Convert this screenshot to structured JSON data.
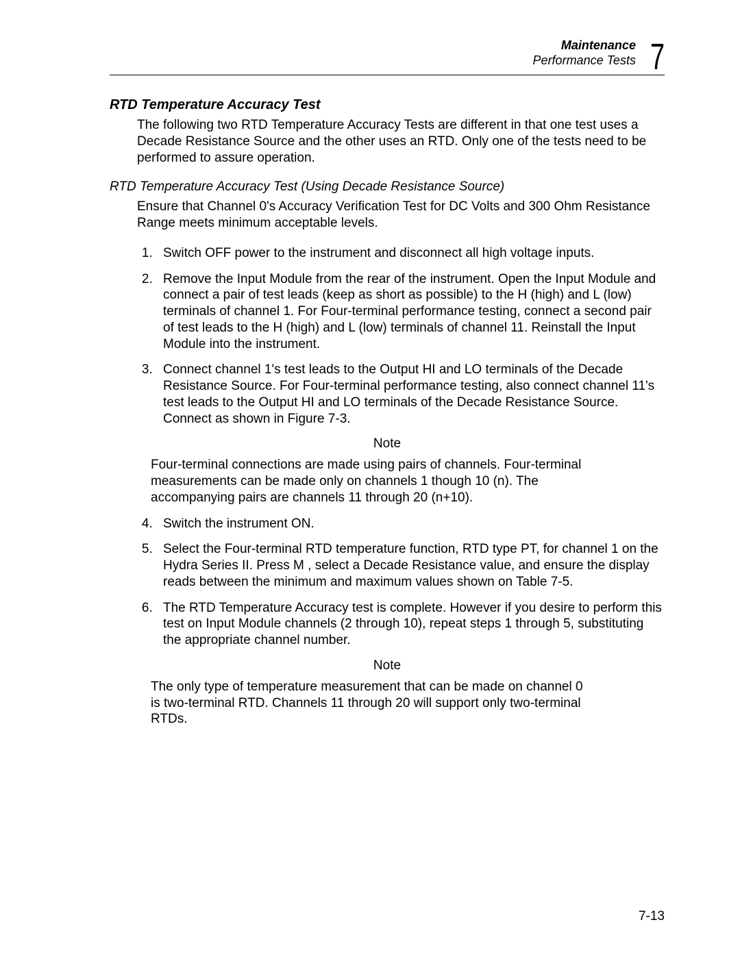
{
  "header": {
    "bold_line": "Maintenance",
    "italic_line": "Performance Tests",
    "chapter_number": "7"
  },
  "section": {
    "heading": "RTD Temperature Accuracy Test",
    "intro": "The following two RTD Temperature Accuracy Tests are different in that one test uses a Decade Resistance Source and the other uses an RTD. Only one of the tests need to be performed to assure operation."
  },
  "subsection": {
    "heading": "RTD Temperature Accuracy Test (Using Decade Resistance Source)",
    "intro": "Ensure that Channel 0's Accuracy Verification Test for DC Volts and 300 Ohm Resistance Range meets minimum acceptable levels.",
    "steps": [
      "Switch OFF power to the instrument and disconnect all high voltage inputs.",
      "Remove the Input Module from the rear of the instrument. Open the Input Module and connect a pair of test leads (keep as short as possible) to the H (high) and L (low) terminals of channel 1. For Four-terminal performance testing, connect a second pair of test leads to the H (high) and L (low) terminals of channel 11. Reinstall the Input Module into the instrument.",
      "Connect channel 1's test leads to the Output HI and LO terminals of the Decade Resistance Source. For Four-terminal performance testing, also connect channel 11's test leads to the Output HI and LO terminals of the Decade Resistance Source. Connect as shown in Figure 7-3."
    ],
    "note1_label": "Note",
    "note1_body": "Four-terminal connections are made using pairs of channels. Four-terminal measurements can be made only on channels 1 though 10 (n). The accompanying pairs are channels 11 through 20 (n+10).",
    "steps2": [
      "Switch the instrument ON.",
      "Select the Four-terminal RTD temperature function, RTD type PT, for channel 1 on the Hydra Series II. Press M , select a Decade Resistance value, and ensure the display reads between the minimum and maximum values shown on Table 7-5.",
      "The RTD Temperature Accuracy test is complete. However if you desire to perform this test on Input Module channels (2 through 10), repeat steps 1 through 5, substituting the appropriate channel number."
    ],
    "note2_label": "Note",
    "note2_body": "The only type of temperature measurement that can be made on channel 0 is two-terminal RTD. Channels 11 through 20 will support only two-terminal RTDs."
  },
  "footer": {
    "page_number": "7-13"
  }
}
